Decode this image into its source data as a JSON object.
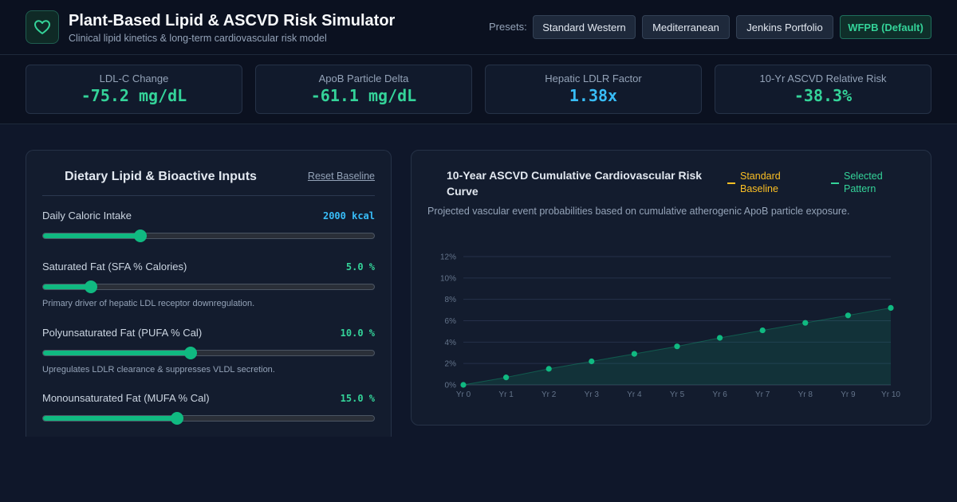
{
  "header": {
    "title": "Plant-Based Lipid & ASCVD Risk Simulator",
    "subtitle": "Clinical lipid kinetics & long-term cardiovascular risk model",
    "presets_label": "Presets:",
    "presets": [
      {
        "label": "Standard Western"
      },
      {
        "label": "Mediterranean"
      },
      {
        "label": "Jenkins Portfolio"
      },
      {
        "label": "WFPB (Default)",
        "active": true
      }
    ]
  },
  "metrics": [
    {
      "label": "LDL-C Change",
      "value": "-75.2 mg/dL",
      "color": "#34d399"
    },
    {
      "label": "ApoB Particle Delta",
      "value": "-61.1 mg/dL",
      "color": "#34d399"
    },
    {
      "label": "Hepatic LDLR Factor",
      "value": "1.38x",
      "color": "#38bdf8"
    },
    {
      "label": "10-Yr ASCVD Relative Risk",
      "value": "-38.3%",
      "color": "#34d399"
    }
  ],
  "inputs": {
    "title": "Dietary Lipid & Bioactive Inputs",
    "reset_label": "Reset Baseline",
    "sliders": [
      {
        "label": "Daily Caloric Intake",
        "value": "2000 kcal",
        "value_color": "#38bdf8",
        "level": 0.295,
        "hint": ""
      },
      {
        "label": "Saturated Fat (SFA % Calories)",
        "value": "5.0 %",
        "value_color": "#34d399",
        "level": 0.145,
        "hint": "Primary driver of hepatic LDL receptor downregulation."
      },
      {
        "label": "Polyunsaturated Fat (PUFA % Cal)",
        "value": "10.0 %",
        "value_color": "#34d399",
        "level": 0.445,
        "hint": "Upregulates LDLR clearance & suppresses VLDL secretion."
      },
      {
        "label": "Monounsaturated Fat (MUFA % Cal)",
        "value": "15.0 %",
        "value_color": "#34d399",
        "level": 0.405,
        "hint": ""
      }
    ]
  },
  "chart": {
    "title": "10-Year ASCVD Cumulative Cardiovascular Risk Curve",
    "subtitle": "Projected vascular event probabilities based on cumulative atherogenic ApoB particle exposure.",
    "legend": [
      {
        "label": "Standard Baseline",
        "color": "#fbbf24"
      },
      {
        "label": "Selected Pattern",
        "color": "#34d399"
      }
    ]
  },
  "chart_data": {
    "type": "line",
    "categories": [
      "Yr 0",
      "Yr 1",
      "Yr 2",
      "Yr 3",
      "Yr 4",
      "Yr 5",
      "Yr 6",
      "Yr 7",
      "Yr 8",
      "Yr 9",
      "Yr 10"
    ],
    "series": [
      {
        "name": "Selected Pattern",
        "values": [
          0.0,
          0.7,
          1.5,
          2.2,
          2.9,
          3.6,
          4.4,
          5.1,
          5.8,
          6.5,
          7.2
        ],
        "color": "#10b981"
      }
    ],
    "y_ticks": [
      "0%",
      "2%",
      "4%",
      "6%",
      "8%",
      "10%",
      "12%"
    ],
    "ylim": [
      0,
      12
    ],
    "grid": true
  }
}
